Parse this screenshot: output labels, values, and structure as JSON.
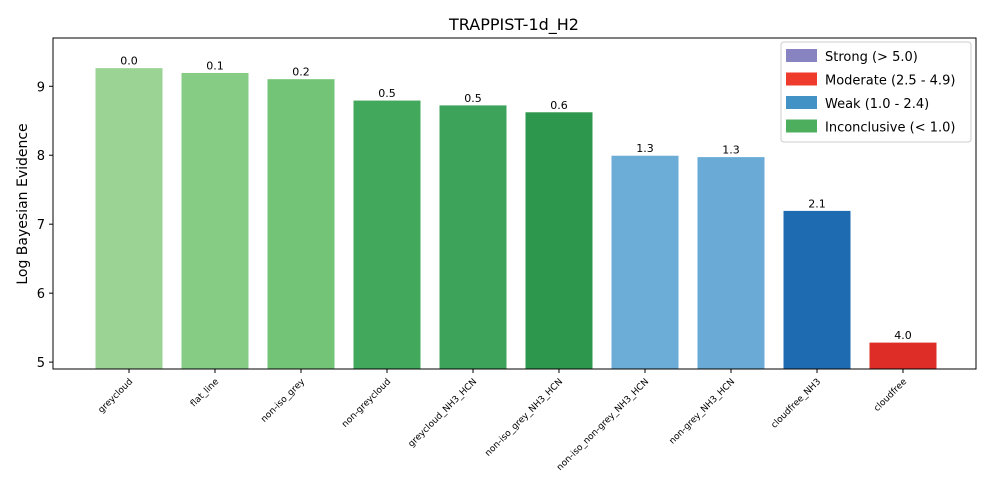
{
  "chart_data": {
    "type": "bar",
    "title": "TRAPPIST-1d_H2",
    "xlabel": "",
    "ylabel": "Log Bayesian Evidence",
    "ylim": [
      4.9,
      9.7
    ],
    "yticks": [
      5,
      6,
      7,
      8,
      9
    ],
    "categories": [
      "greycloud",
      "flat_line",
      "non-iso_grey",
      "non-greycloud",
      "greycloud_NH3_HCN",
      "non-iso_grey_NH3_HCN",
      "non-iso_non-grey_NH3_HCN",
      "non-grey_NH3_HCN",
      "cloudfree_NH3",
      "cloudfree"
    ],
    "values": [
      9.27,
      9.2,
      9.11,
      8.8,
      8.73,
      8.63,
      8.0,
      7.98,
      7.2,
      5.29
    ],
    "labels": [
      "0.0",
      "0.1",
      "0.2",
      "0.5",
      "0.5",
      "0.6",
      "1.3",
      "1.3",
      "2.1",
      "4.0"
    ],
    "colors": [
      "#9bd394",
      "#86cc84",
      "#73c476",
      "#41a85c",
      "#3da35a",
      "#2e974e",
      "#6badd6",
      "#69abd6",
      "#1f6bb1",
      "#de2d26"
    ],
    "grid": false,
    "legend": {
      "placement": "top-right",
      "entries": [
        {
          "label": "Strong (> 5.0)",
          "color": "#8884c2"
        },
        {
          "label": "Moderate (2.5 - 4.9)",
          "color": "#ef3b2c"
        },
        {
          "label": "Weak (1.0 - 2.4)",
          "color": "#4292c6"
        },
        {
          "label": "Inconclusive (< 1.0)",
          "color": "#4daf5e"
        }
      ]
    }
  }
}
